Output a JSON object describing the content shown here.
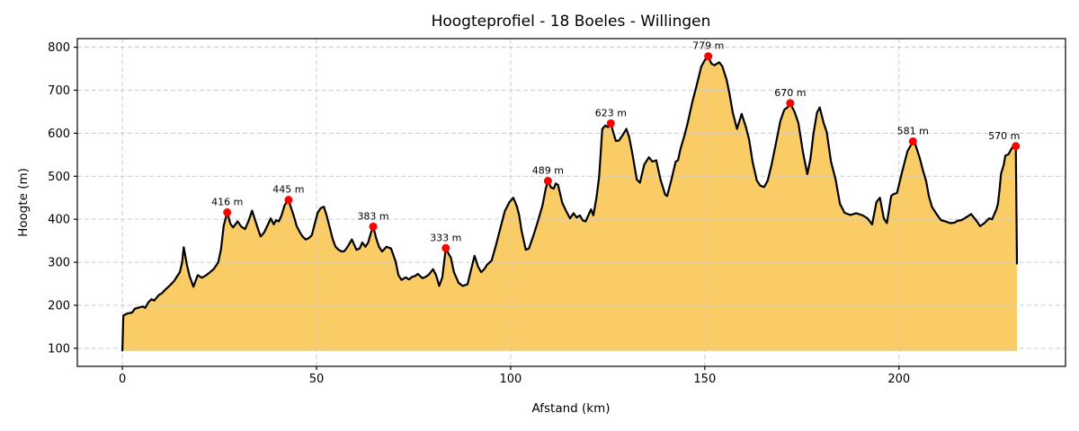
{
  "chart_data": {
    "type": "area",
    "title": "Hoogteprofiel - 18 Boeles - Willingen",
    "xlabel": "Afstand (km)",
    "ylabel": "Hoogte (m)",
    "xlim": [
      -11.6,
      242.9
    ],
    "ylim": [
      58,
      820
    ],
    "x_ticks": [
      0,
      50,
      100,
      150,
      200
    ],
    "y_ticks": [
      100,
      200,
      300,
      400,
      500,
      600,
      700,
      800
    ],
    "grid": true,
    "legend": false,
    "fill_baseline_m": 94,
    "colors": {
      "fill": "#FACC66",
      "line": "#000000",
      "marker": "#FF0000",
      "marker_label": "#FF0000",
      "grid": "#CCCCCC",
      "spine": "#000000"
    },
    "profile_points_km_m": [
      [
        0,
        95
      ],
      [
        0.25,
        176
      ],
      [
        1.3,
        181
      ],
      [
        2.5,
        183
      ],
      [
        3.2,
        192
      ],
      [
        4,
        194
      ],
      [
        5.2,
        197
      ],
      [
        5.9,
        194
      ],
      [
        6.7,
        207
      ],
      [
        7.5,
        214
      ],
      [
        8.2,
        211
      ],
      [
        9.4,
        224
      ],
      [
        10.2,
        228
      ],
      [
        10.9,
        235
      ],
      [
        12.1,
        245
      ],
      [
        13.3,
        256
      ],
      [
        14,
        266
      ],
      [
        14.8,
        277
      ],
      [
        15.4,
        300
      ],
      [
        15.8,
        335
      ],
      [
        16.6,
        295
      ],
      [
        17.3,
        268
      ],
      [
        18.3,
        243
      ],
      [
        19.4,
        270
      ],
      [
        20.5,
        264
      ],
      [
        21.6,
        270
      ],
      [
        22.6,
        277
      ],
      [
        23.6,
        285
      ],
      [
        24.7,
        300
      ],
      [
        25.4,
        330
      ],
      [
        26.1,
        385
      ],
      [
        27,
        416
      ],
      [
        27.8,
        390
      ],
      [
        28.5,
        381
      ],
      [
        29.7,
        395
      ],
      [
        30.6,
        383
      ],
      [
        31.6,
        377
      ],
      [
        32.5,
        396
      ],
      [
        33.4,
        420
      ],
      [
        34.2,
        398
      ],
      [
        34.8,
        381
      ],
      [
        35.6,
        360
      ],
      [
        36.5,
        369
      ],
      [
        37.4,
        386
      ],
      [
        38.2,
        402
      ],
      [
        39,
        388
      ],
      [
        39.6,
        398
      ],
      [
        40.3,
        395
      ],
      [
        41,
        409
      ],
      [
        41.8,
        433
      ],
      [
        42.8,
        445
      ],
      [
        43.5,
        425
      ],
      [
        44.1,
        409
      ],
      [
        44.9,
        384
      ],
      [
        45.7,
        370
      ],
      [
        46.4,
        360
      ],
      [
        47.2,
        353
      ],
      [
        48,
        356
      ],
      [
        48.8,
        363
      ],
      [
        49.5,
        388
      ],
      [
        50.3,
        415
      ],
      [
        51.1,
        426
      ],
      [
        51.9,
        429
      ],
      [
        52.6,
        409
      ],
      [
        53.4,
        381
      ],
      [
        54.2,
        353
      ],
      [
        54.9,
        336
      ],
      [
        55.7,
        329
      ],
      [
        56.5,
        325
      ],
      [
        57.2,
        326
      ],
      [
        58,
        336
      ],
      [
        59.1,
        353
      ],
      [
        60.3,
        329
      ],
      [
        61.1,
        332
      ],
      [
        61.8,
        346
      ],
      [
        62.6,
        336
      ],
      [
        63.3,
        346
      ],
      [
        64,
        368
      ],
      [
        64.6,
        383
      ],
      [
        65.4,
        355
      ],
      [
        66.1,
        336
      ],
      [
        66.9,
        325
      ],
      [
        68,
        336
      ],
      [
        69.2,
        332
      ],
      [
        70.4,
        301
      ],
      [
        71.1,
        270
      ],
      [
        71.9,
        259
      ],
      [
        73,
        265
      ],
      [
        73.8,
        260
      ],
      [
        74.6,
        266
      ],
      [
        75.4,
        268
      ],
      [
        76.1,
        273
      ],
      [
        77.3,
        263
      ],
      [
        78.1,
        266
      ],
      [
        79,
        272
      ],
      [
        80,
        284
      ],
      [
        80.8,
        270
      ],
      [
        81.6,
        245
      ],
      [
        82.4,
        265
      ],
      [
        83.3,
        333
      ],
      [
        84.1,
        318
      ],
      [
        84.6,
        311
      ],
      [
        85.4,
        277
      ],
      [
        86.6,
        252
      ],
      [
        87.7,
        245
      ],
      [
        88.9,
        249
      ],
      [
        90,
        290
      ],
      [
        90.7,
        315
      ],
      [
        91.6,
        290
      ],
      [
        92.4,
        277
      ],
      [
        93.3,
        285
      ],
      [
        93.9,
        294
      ],
      [
        95.1,
        304
      ],
      [
        96.2,
        339
      ],
      [
        97.4,
        381
      ],
      [
        98.5,
        419
      ],
      [
        99.7,
        440
      ],
      [
        100.7,
        450
      ],
      [
        101.6,
        430
      ],
      [
        102.2,
        409
      ],
      [
        102.8,
        374
      ],
      [
        103.9,
        329
      ],
      [
        104.7,
        332
      ],
      [
        105.9,
        363
      ],
      [
        107,
        395
      ],
      [
        108.2,
        432
      ],
      [
        109,
        470
      ],
      [
        109.6,
        489
      ],
      [
        110.4,
        474
      ],
      [
        111.1,
        471
      ],
      [
        111.6,
        483
      ],
      [
        112.2,
        480
      ],
      [
        113.3,
        438
      ],
      [
        114.3,
        419
      ],
      [
        115.3,
        402
      ],
      [
        116.2,
        414
      ],
      [
        117,
        404
      ],
      [
        117.8,
        409
      ],
      [
        118.6,
        397
      ],
      [
        119.3,
        395
      ],
      [
        120.3,
        415
      ],
      [
        120.7,
        423
      ],
      [
        121.3,
        409
      ],
      [
        122.1,
        450
      ],
      [
        122.8,
        500
      ],
      [
        123.6,
        610
      ],
      [
        124.4,
        618
      ],
      [
        125.1,
        614
      ],
      [
        125.8,
        623
      ],
      [
        126.5,
        600
      ],
      [
        127.1,
        582
      ],
      [
        127.9,
        583
      ],
      [
        128.8,
        595
      ],
      [
        129.8,
        610
      ],
      [
        130.5,
        592
      ],
      [
        131.3,
        555
      ],
      [
        132.5,
        492
      ],
      [
        133.3,
        485
      ],
      [
        134.4,
        527
      ],
      [
        135.6,
        544
      ],
      [
        136.5,
        534
      ],
      [
        137.5,
        537
      ],
      [
        138.6,
        492
      ],
      [
        139.8,
        457
      ],
      [
        140.3,
        454
      ],
      [
        141.4,
        492
      ],
      [
        142.5,
        534
      ],
      [
        143.1,
        537
      ],
      [
        143.7,
        562
      ],
      [
        144.8,
        596
      ],
      [
        145.6,
        624
      ],
      [
        146.8,
        673
      ],
      [
        147.9,
        711
      ],
      [
        149.1,
        755
      ],
      [
        150,
        770
      ],
      [
        150.9,
        779
      ],
      [
        151.7,
        762
      ],
      [
        152.5,
        758
      ],
      [
        153.7,
        765
      ],
      [
        154.5,
        756
      ],
      [
        155.6,
        725
      ],
      [
        156.4,
        690
      ],
      [
        157.2,
        648
      ],
      [
        158.3,
        610
      ],
      [
        159.5,
        645
      ],
      [
        160.6,
        614
      ],
      [
        161.4,
        586
      ],
      [
        162.3,
        534
      ],
      [
        163.4,
        490
      ],
      [
        164.3,
        478
      ],
      [
        165.3,
        475
      ],
      [
        166.2,
        490
      ],
      [
        167.2,
        527
      ],
      [
        168.4,
        580
      ],
      [
        169.5,
        630
      ],
      [
        170.5,
        655
      ],
      [
        171.3,
        660
      ],
      [
        172,
        670
      ],
      [
        173.1,
        650
      ],
      [
        174.1,
        624
      ],
      [
        175.3,
        555
      ],
      [
        176.4,
        505
      ],
      [
        177.2,
        540
      ],
      [
        178,
        600
      ],
      [
        178.9,
        648
      ],
      [
        179.6,
        660
      ],
      [
        180.6,
        624
      ],
      [
        181.4,
        603
      ],
      [
        182.5,
        534
      ],
      [
        183.7,
        492
      ],
      [
        184.8,
        436
      ],
      [
        186,
        415
      ],
      [
        187.5,
        410
      ],
      [
        189,
        414
      ],
      [
        190.7,
        409
      ],
      [
        191.9,
        402
      ],
      [
        193.1,
        388
      ],
      [
        194.2,
        440
      ],
      [
        195.1,
        450
      ],
      [
        196.1,
        402
      ],
      [
        196.9,
        391
      ],
      [
        198,
        454
      ],
      [
        198.7,
        459
      ],
      [
        199.5,
        461
      ],
      [
        200.7,
        506
      ],
      [
        201.5,
        534
      ],
      [
        202.2,
        558
      ],
      [
        203.6,
        581
      ],
      [
        204.2,
        575
      ],
      [
        205.4,
        541
      ],
      [
        206.2,
        513
      ],
      [
        207,
        489
      ],
      [
        207.7,
        454
      ],
      [
        208.5,
        429
      ],
      [
        209.7,
        412
      ],
      [
        210.8,
        398
      ],
      [
        212,
        395
      ],
      [
        213.2,
        391
      ],
      [
        214.3,
        392
      ],
      [
        215,
        396
      ],
      [
        216.1,
        398
      ],
      [
        217.4,
        405
      ],
      [
        218.6,
        412
      ],
      [
        220.1,
        395
      ],
      [
        220.9,
        384
      ],
      [
        222,
        391
      ],
      [
        223.2,
        402
      ],
      [
        224,
        400
      ],
      [
        225.1,
        423
      ],
      [
        225.5,
        436
      ],
      [
        225.9,
        468
      ],
      [
        226.3,
        506
      ],
      [
        227,
        527
      ],
      [
        227.4,
        548
      ],
      [
        228.2,
        551
      ],
      [
        229.3,
        569
      ],
      [
        230.1,
        570
      ],
      [
        230.4,
        297
      ]
    ],
    "peak_markers": [
      {
        "km": 27,
        "elevation_m": 416,
        "label": "416 m"
      },
      {
        "km": 42.8,
        "elevation_m": 445,
        "label": "445 m"
      },
      {
        "km": 64.6,
        "elevation_m": 383,
        "label": "383 m"
      },
      {
        "km": 83.3,
        "elevation_m": 333,
        "label": "333 m"
      },
      {
        "km": 109.6,
        "elevation_m": 489,
        "label": "489 m"
      },
      {
        "km": 125.8,
        "elevation_m": 623,
        "label": "623 m"
      },
      {
        "km": 150.9,
        "elevation_m": 779,
        "label": "779 m"
      },
      {
        "km": 172,
        "elevation_m": 670,
        "label": "670 m"
      },
      {
        "km": 203.6,
        "elevation_m": 581,
        "label": "581 m"
      },
      {
        "km": 230.1,
        "elevation_m": 570,
        "label": "570 m",
        "label_dx": -13
      }
    ]
  }
}
